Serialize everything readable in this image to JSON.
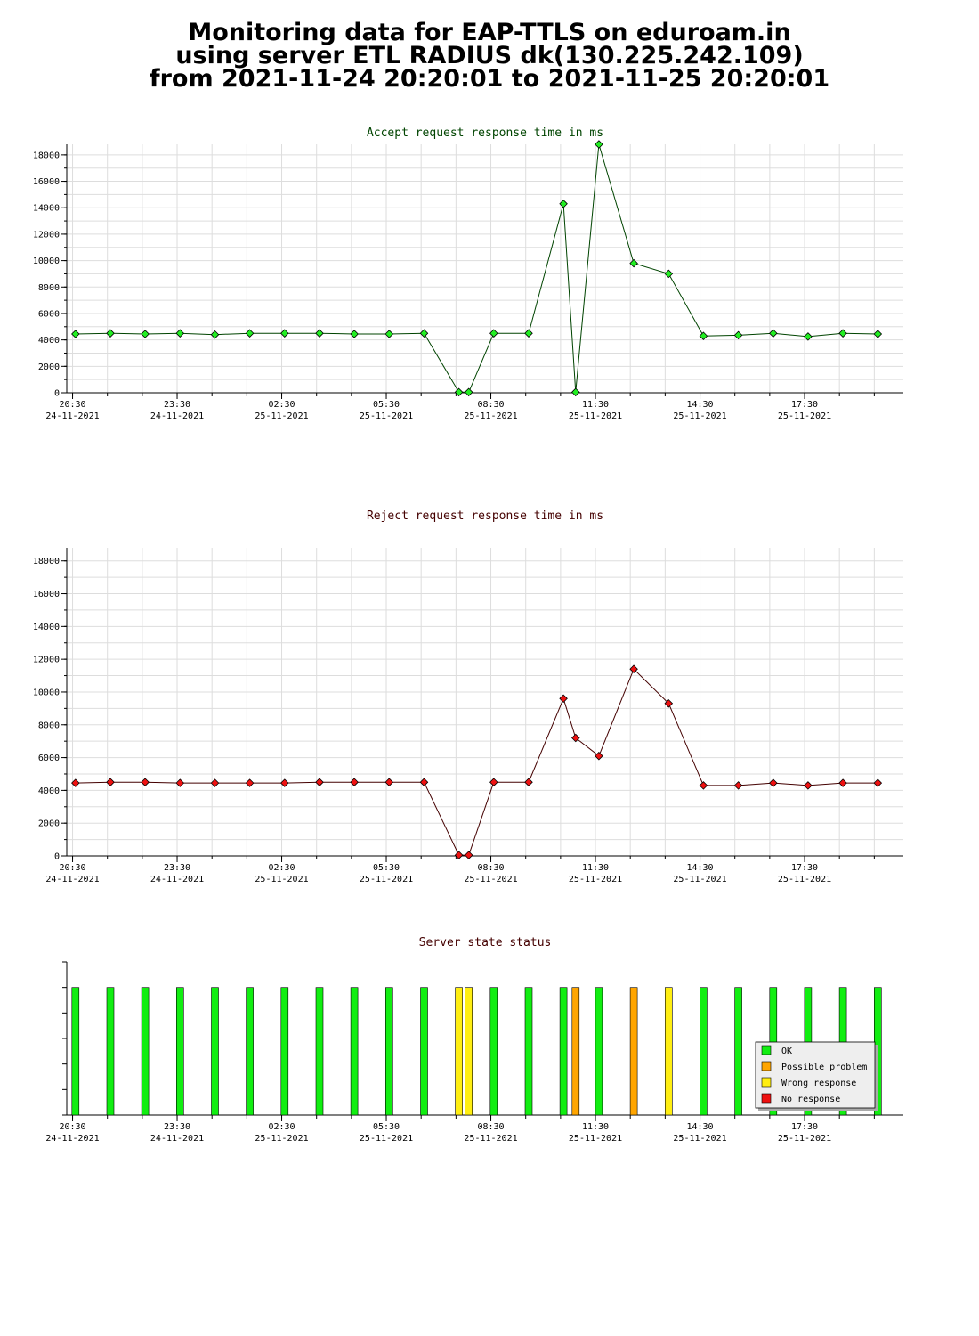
{
  "header": {
    "lines": [
      "Monitoring data for EAP-TTLS on eduroam.in",
      "using server ETL RADIUS dk(130.225.242.109)",
      "from 2021-11-24 20:20:01 to 2021-11-25 20:20:01"
    ]
  },
  "chart_data": [
    {
      "type": "line",
      "title": "Accept request response time in ms",
      "colors": {
        "title": "#004400",
        "line": "#004400",
        "marker": "#22ee22"
      },
      "x_range": [
        "2021-11-24 20:20",
        "2021-11-25 20:20"
      ],
      "ylim": [
        0,
        18800
      ],
      "yticks": [
        0,
        2000,
        4000,
        6000,
        8000,
        10000,
        12000,
        14000,
        16000,
        18000
      ],
      "xticks": [
        {
          "time": "20:30",
          "date": "24-11-2021"
        },
        {
          "time": "23:30",
          "date": "24-11-2021"
        },
        {
          "time": "02:30",
          "date": "25-11-2021"
        },
        {
          "time": "05:30",
          "date": "25-11-2021"
        },
        {
          "time": "08:30",
          "date": "25-11-2021"
        },
        {
          "time": "11:30",
          "date": "25-11-2021"
        },
        {
          "time": "14:30",
          "date": "25-11-2021"
        },
        {
          "time": "17:30",
          "date": "25-11-2021"
        }
      ],
      "grid": true,
      "points": [
        {
          "x": "2021-11-24 20:35",
          "y": 4450
        },
        {
          "x": "2021-11-24 21:35",
          "y": 4500
        },
        {
          "x": "2021-11-24 22:35",
          "y": 4450
        },
        {
          "x": "2021-11-24 23:35",
          "y": 4500
        },
        {
          "x": "2021-11-25 00:35",
          "y": 4400
        },
        {
          "x": "2021-11-25 01:35",
          "y": 4500
        },
        {
          "x": "2021-11-25 02:35",
          "y": 4500
        },
        {
          "x": "2021-11-25 03:35",
          "y": 4500
        },
        {
          "x": "2021-11-25 04:35",
          "y": 4450
        },
        {
          "x": "2021-11-25 05:35",
          "y": 4450
        },
        {
          "x": "2021-11-25 06:35",
          "y": 4500
        },
        {
          "x": "2021-11-25 07:35",
          "y": 50
        },
        {
          "x": "2021-11-25 07:52",
          "y": 50
        },
        {
          "x": "2021-11-25 08:35",
          "y": 4500
        },
        {
          "x": "2021-11-25 09:35",
          "y": 4500
        },
        {
          "x": "2021-11-25 10:35",
          "y": 14300
        },
        {
          "x": "2021-11-25 10:56",
          "y": 50
        },
        {
          "x": "2021-11-25 11:36",
          "y": 18800
        },
        {
          "x": "2021-11-25 12:36",
          "y": 9800
        },
        {
          "x": "2021-11-25 13:36",
          "y": 9000
        },
        {
          "x": "2021-11-25 14:36",
          "y": 4300
        },
        {
          "x": "2021-11-25 15:36",
          "y": 4350
        },
        {
          "x": "2021-11-25 16:36",
          "y": 4500
        },
        {
          "x": "2021-11-25 17:36",
          "y": 4250
        },
        {
          "x": "2021-11-25 18:36",
          "y": 4500
        },
        {
          "x": "2021-11-25 19:36",
          "y": 4450
        }
      ]
    },
    {
      "type": "line",
      "title": "Reject request response time in ms",
      "colors": {
        "title": "#440000",
        "line": "#440000",
        "marker": "#ee1111"
      },
      "x_range": [
        "2021-11-24 20:20",
        "2021-11-25 20:20"
      ],
      "ylim": [
        0,
        18800
      ],
      "yticks": [
        0,
        2000,
        4000,
        6000,
        8000,
        10000,
        12000,
        14000,
        16000,
        18000
      ],
      "xticks": [
        {
          "time": "20:30",
          "date": "24-11-2021"
        },
        {
          "time": "23:30",
          "date": "24-11-2021"
        },
        {
          "time": "02:30",
          "date": "25-11-2021"
        },
        {
          "time": "05:30",
          "date": "25-11-2021"
        },
        {
          "time": "08:30",
          "date": "25-11-2021"
        },
        {
          "time": "11:30",
          "date": "25-11-2021"
        },
        {
          "time": "14:30",
          "date": "25-11-2021"
        },
        {
          "time": "17:30",
          "date": "25-11-2021"
        }
      ],
      "grid": true,
      "points": [
        {
          "x": "2021-11-24 20:35",
          "y": 4450
        },
        {
          "x": "2021-11-24 21:35",
          "y": 4500
        },
        {
          "x": "2021-11-24 22:35",
          "y": 4500
        },
        {
          "x": "2021-11-24 23:35",
          "y": 4450
        },
        {
          "x": "2021-11-25 00:35",
          "y": 4450
        },
        {
          "x": "2021-11-25 01:35",
          "y": 4450
        },
        {
          "x": "2021-11-25 02:35",
          "y": 4450
        },
        {
          "x": "2021-11-25 03:35",
          "y": 4500
        },
        {
          "x": "2021-11-25 04:35",
          "y": 4500
        },
        {
          "x": "2021-11-25 05:35",
          "y": 4500
        },
        {
          "x": "2021-11-25 06:35",
          "y": 4500
        },
        {
          "x": "2021-11-25 07:35",
          "y": 50
        },
        {
          "x": "2021-11-25 07:52",
          "y": 50
        },
        {
          "x": "2021-11-25 08:35",
          "y": 4500
        },
        {
          "x": "2021-11-25 09:35",
          "y": 4500
        },
        {
          "x": "2021-11-25 10:35",
          "y": 9600
        },
        {
          "x": "2021-11-25 10:56",
          "y": 7200
        },
        {
          "x": "2021-11-25 11:36",
          "y": 6100
        },
        {
          "x": "2021-11-25 12:36",
          "y": 11400
        },
        {
          "x": "2021-11-25 13:36",
          "y": 9300
        },
        {
          "x": "2021-11-25 14:36",
          "y": 4300
        },
        {
          "x": "2021-11-25 15:36",
          "y": 4300
        },
        {
          "x": "2021-11-25 16:36",
          "y": 4450
        },
        {
          "x": "2021-11-25 17:36",
          "y": 4300
        },
        {
          "x": "2021-11-25 18:36",
          "y": 4450
        },
        {
          "x": "2021-11-25 19:36",
          "y": 4450
        }
      ]
    },
    {
      "type": "bar",
      "title": "Server state status",
      "colors": {
        "title": "#440000"
      },
      "x_range": [
        "2021-11-24 20:20",
        "2021-11-25 20:20"
      ],
      "xticks": [
        {
          "time": "20:30",
          "date": "24-11-2021"
        },
        {
          "time": "23:30",
          "date": "24-11-2021"
        },
        {
          "time": "02:30",
          "date": "25-11-2021"
        },
        {
          "time": "05:30",
          "date": "25-11-2021"
        },
        {
          "time": "08:30",
          "date": "25-11-2021"
        },
        {
          "time": "11:30",
          "date": "25-11-2021"
        },
        {
          "time": "14:30",
          "date": "25-11-2021"
        },
        {
          "time": "17:30",
          "date": "25-11-2021"
        }
      ],
      "grid": false,
      "legend": {
        "position": "bottom-right",
        "entries": [
          {
            "label": "OK",
            "color": "#11ee11"
          },
          {
            "label": "Possible problem",
            "color": "#ffa500"
          },
          {
            "label": "Wrong response",
            "color": "#ffee11"
          },
          {
            "label": "No response",
            "color": "#ee1111"
          }
        ]
      },
      "bars": [
        {
          "x": "2021-11-24 20:35",
          "state": "OK"
        },
        {
          "x": "2021-11-24 21:35",
          "state": "OK"
        },
        {
          "x": "2021-11-24 22:35",
          "state": "OK"
        },
        {
          "x": "2021-11-24 23:35",
          "state": "OK"
        },
        {
          "x": "2021-11-25 00:35",
          "state": "OK"
        },
        {
          "x": "2021-11-25 01:35",
          "state": "OK"
        },
        {
          "x": "2021-11-25 02:35",
          "state": "OK"
        },
        {
          "x": "2021-11-25 03:35",
          "state": "OK"
        },
        {
          "x": "2021-11-25 04:35",
          "state": "OK"
        },
        {
          "x": "2021-11-25 05:35",
          "state": "OK"
        },
        {
          "x": "2021-11-25 06:35",
          "state": "OK"
        },
        {
          "x": "2021-11-25 07:35",
          "state": "Wrong response"
        },
        {
          "x": "2021-11-25 07:52",
          "state": "Wrong response"
        },
        {
          "x": "2021-11-25 08:35",
          "state": "OK"
        },
        {
          "x": "2021-11-25 09:35",
          "state": "OK"
        },
        {
          "x": "2021-11-25 10:35",
          "state": "OK"
        },
        {
          "x": "2021-11-25 10:56",
          "state": "Possible problem"
        },
        {
          "x": "2021-11-25 11:36",
          "state": "OK"
        },
        {
          "x": "2021-11-25 12:36",
          "state": "Possible problem"
        },
        {
          "x": "2021-11-25 13:36",
          "state": "Wrong response"
        },
        {
          "x": "2021-11-25 14:36",
          "state": "OK"
        },
        {
          "x": "2021-11-25 15:36",
          "state": "OK"
        },
        {
          "x": "2021-11-25 16:36",
          "state": "OK"
        },
        {
          "x": "2021-11-25 17:36",
          "state": "OK"
        },
        {
          "x": "2021-11-25 18:36",
          "state": "OK"
        },
        {
          "x": "2021-11-25 19:36",
          "state": "OK"
        }
      ]
    }
  ]
}
